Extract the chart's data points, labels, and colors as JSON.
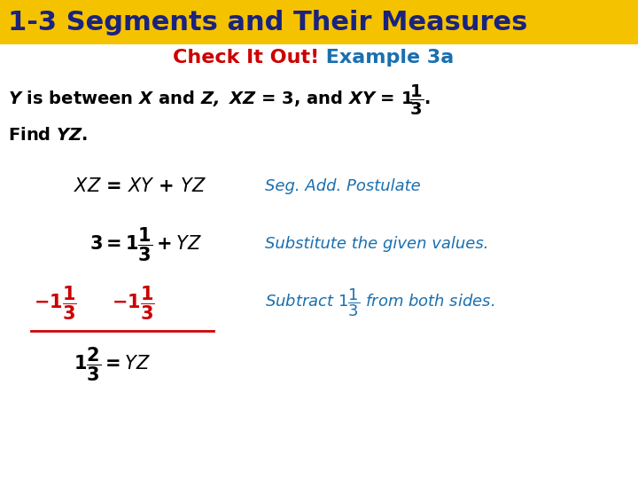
{
  "title_text": "1-3 Segments and Their Measures",
  "title_bg_color": "#F5C200",
  "title_font_color": "#1a237e",
  "title_fontsize": 22,
  "subtitle_red": "Check It Out!",
  "subtitle_blue": " Example 3a",
  "subtitle_red_color": "#cc0000",
  "subtitle_blue_color": "#1a6faf",
  "subtitle_fontsize": 16,
  "body_color": "#000000",
  "red_color": "#cc0000",
  "blue_color": "#1a6faf",
  "dark_blue": "#1a237e",
  "bg_color": "#ffffff",
  "title_bar_height": 0.093,
  "fs_body": 14,
  "fs_small": 10
}
